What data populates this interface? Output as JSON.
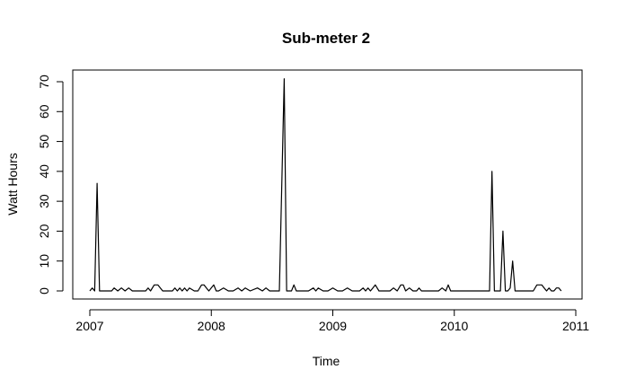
{
  "chart_data": {
    "type": "line",
    "title": "Sub-meter 2",
    "xlabel": "Time",
    "ylabel": "Watt Hours",
    "xlim": [
      2007.0,
      2011.0
    ],
    "ylim": [
      0,
      70
    ],
    "xticks": [
      2007,
      2008,
      2009,
      2010,
      2011
    ],
    "xtick_labels": [
      "2007",
      "2008",
      "2009",
      "2010",
      "2011"
    ],
    "yticks": [
      0,
      10,
      20,
      30,
      40,
      50,
      60,
      70
    ],
    "ytick_labels": [
      "0",
      "10",
      "20",
      "30",
      "40",
      "50",
      "60",
      "70"
    ],
    "grid": false,
    "legend": "none",
    "line_color": "#000000",
    "series": [
      {
        "x": [
          2007.0,
          2007.02,
          2007.04,
          2007.06,
          2007.08,
          2007.12,
          2007.18,
          2007.2,
          2007.23,
          2007.26,
          2007.29,
          2007.32,
          2007.35,
          2007.38,
          2007.42,
          2007.46,
          2007.48,
          2007.5,
          2007.53,
          2007.56,
          2007.6,
          2007.63,
          2007.66,
          2007.68,
          2007.7,
          2007.72,
          2007.74,
          2007.76,
          2007.78,
          2007.8,
          2007.82,
          2007.86,
          2007.89,
          2007.92,
          2007.94,
          2007.96,
          2007.98,
          2008.02,
          2008.04,
          2008.06,
          2008.1,
          2008.14,
          2008.16,
          2008.18,
          2008.22,
          2008.25,
          2008.28,
          2008.32,
          2008.38,
          2008.42,
          2008.45,
          2008.48,
          2008.52,
          2008.56,
          2008.6,
          2008.62,
          2008.66,
          2008.68,
          2008.7,
          2008.76,
          2008.8,
          2008.84,
          2008.86,
          2008.88,
          2008.92,
          2008.96,
          2009.0,
          2009.04,
          2009.08,
          2009.12,
          2009.16,
          2009.22,
          2009.25,
          2009.27,
          2009.29,
          2009.31,
          2009.33,
          2009.35,
          2009.38,
          2009.42,
          2009.47,
          2009.5,
          2009.53,
          2009.56,
          2009.58,
          2009.6,
          2009.63,
          2009.66,
          2009.69,
          2009.71,
          2009.73,
          2009.76,
          2009.82,
          2009.87,
          2009.9,
          2009.93,
          2009.95,
          2009.97,
          2010.0,
          2010.1,
          2010.2,
          2010.29,
          2010.31,
          2010.33,
          2010.36,
          2010.38,
          2010.4,
          2010.42,
          2010.44,
          2010.46,
          2010.48,
          2010.5,
          2010.54,
          2010.6,
          2010.65,
          2010.68,
          2010.72,
          2010.74,
          2010.76,
          2010.78,
          2010.8,
          2010.82,
          2010.84,
          2010.86,
          2010.88
        ],
        "values": [
          0,
          1,
          0,
          36,
          0,
          0,
          0,
          1,
          0,
          1,
          0,
          1,
          0,
          0,
          0,
          0,
          1,
          0,
          2,
          2,
          0,
          0,
          0,
          0,
          1,
          0,
          1,
          0,
          1,
          0,
          1,
          0,
          0,
          2,
          2,
          1,
          0,
          2,
          0,
          0,
          1,
          0,
          0,
          0,
          1,
          0,
          1,
          0,
          1,
          0,
          1,
          0,
          0,
          0,
          71,
          0,
          0,
          2,
          0,
          0,
          0,
          1,
          0,
          1,
          0,
          0,
          1,
          0,
          0,
          1,
          0,
          0,
          1,
          0,
          1,
          0,
          1,
          2,
          0,
          0,
          0,
          1,
          0,
          2,
          2,
          0,
          1,
          0,
          0,
          1,
          0,
          0,
          0,
          0,
          1,
          0,
          2,
          0,
          0,
          0,
          0,
          0,
          40,
          0,
          0,
          0,
          20,
          0,
          0,
          1,
          10,
          0,
          0,
          0,
          0,
          2,
          2,
          1,
          0,
          1,
          0,
          0,
          1,
          1,
          0
        ]
      }
    ]
  }
}
